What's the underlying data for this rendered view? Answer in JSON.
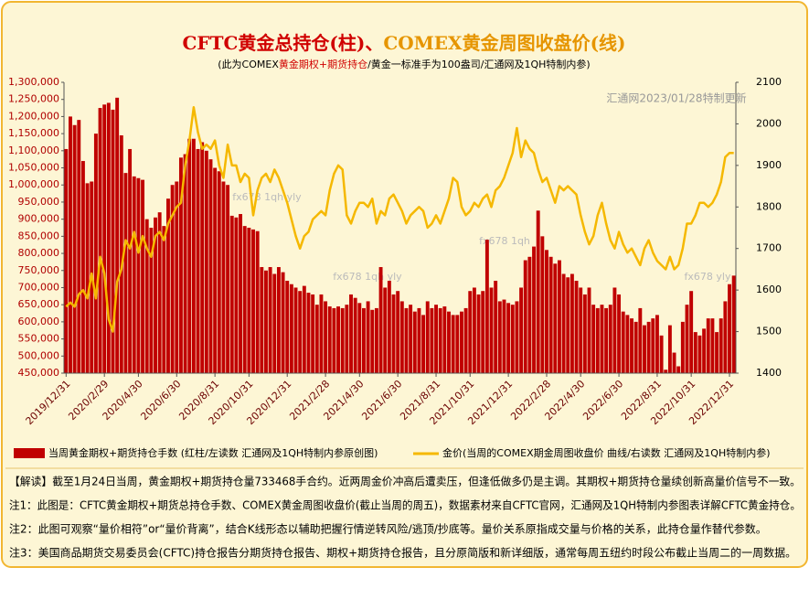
{
  "chart_data": {
    "type": "bar-line",
    "title_parts": [
      "CFTC黄金总持仓(柱)、",
      "COMEX黄金周图收盘价(线)"
    ],
    "subtitle_parts": [
      "(此为COMEX",
      "黄金期权+期货持仓",
      "/黄金一标准手为100盎司/汇通网及1QH特制内参)"
    ],
    "categories": [
      "2019/12/31",
      null,
      null,
      null,
      null,
      null,
      null,
      null,
      null,
      "2020/2/29",
      null,
      null,
      null,
      null,
      null,
      null,
      null,
      "2020/4/30",
      null,
      null,
      null,
      null,
      null,
      null,
      null,
      null,
      "2020/6/30",
      null,
      null,
      null,
      null,
      null,
      null,
      null,
      null,
      "2020/8/31",
      null,
      null,
      null,
      null,
      null,
      null,
      null,
      "2020/10/31",
      null,
      null,
      null,
      null,
      null,
      null,
      null,
      null,
      "2020/12/31",
      null,
      null,
      null,
      null,
      null,
      null,
      null,
      null,
      "2021/2/28",
      null,
      null,
      null,
      null,
      null,
      null,
      null,
      "2021/4/30",
      null,
      null,
      null,
      null,
      null,
      null,
      null,
      null,
      "2021/6/30",
      null,
      null,
      null,
      null,
      null,
      null,
      null,
      null,
      "2021/8/31",
      null,
      null,
      null,
      null,
      null,
      null,
      null,
      "2021/10/31",
      null,
      null,
      null,
      null,
      null,
      null,
      null,
      null,
      "2021/12/31",
      null,
      null,
      null,
      null,
      null,
      null,
      null,
      null,
      "2022/2/28",
      null,
      null,
      null,
      null,
      null,
      null,
      null,
      "2022/4/30",
      null,
      null,
      null,
      null,
      null,
      null,
      null,
      null,
      "2022/6/30",
      null,
      null,
      null,
      null,
      null,
      null,
      null,
      null,
      "2022/8/31",
      null,
      null,
      null,
      null,
      null,
      null,
      null,
      "2022/10/31",
      null,
      null,
      null,
      null,
      null,
      null,
      null,
      null,
      "2022/12/31",
      null
    ],
    "series": [
      {
        "name": "当周黄金期权+期货持仓手数 (红柱/左读数 汇通网及1QH特制内参原创图)",
        "color": "#c00000",
        "kind": "bar",
        "values": [
          1105000,
          1200000,
          1175000,
          1190000,
          1070000,
          1005000,
          1010000,
          1150000,
          1225000,
          1235000,
          1240000,
          1220000,
          1255000,
          1145000,
          1035000,
          1105000,
          1025000,
          1020000,
          1015000,
          900000,
          875000,
          905000,
          920000,
          880000,
          960000,
          1000000,
          1010000,
          1080000,
          1090000,
          1135000,
          1135000,
          1105000,
          1125000,
          1100000,
          1075000,
          1050000,
          1040000,
          1010000,
          1000000,
          910000,
          905000,
          915000,
          880000,
          875000,
          870000,
          865000,
          760000,
          750000,
          760000,
          740000,
          760000,
          745000,
          720000,
          710000,
          700000,
          690000,
          705000,
          685000,
          680000,
          650000,
          680000,
          660000,
          645000,
          640000,
          645000,
          640000,
          650000,
          680000,
          670000,
          655000,
          640000,
          660000,
          635000,
          640000,
          760000,
          700000,
          720000,
          680000,
          690000,
          660000,
          640000,
          650000,
          630000,
          640000,
          620000,
          660000,
          640000,
          650000,
          640000,
          645000,
          630000,
          620000,
          620000,
          630000,
          640000,
          690000,
          700000,
          680000,
          690000,
          840000,
          700000,
          720000,
          660000,
          665000,
          655000,
          650000,
          660000,
          700000,
          780000,
          790000,
          820000,
          925000,
          850000,
          810000,
          790000,
          770000,
          780000,
          740000,
          730000,
          740000,
          720000,
          700000,
          680000,
          700000,
          650000,
          640000,
          650000,
          640000,
          650000,
          700000,
          680000,
          630000,
          620000,
          610000,
          600000,
          640000,
          590000,
          600000,
          610000,
          620000,
          560000,
          460000,
          590000,
          510000,
          470000,
          600000,
          650000,
          690000,
          570000,
          560000,
          580000,
          610000,
          610000,
          570000,
          610000,
          660000,
          710000,
          735000
        ]
      },
      {
        "name": "金价(当周的COMEX期金周图收盘价 曲线/右读数 汇通网及1QH特制内参)",
        "color": "#f5b800",
        "kind": "line",
        "axis": "y2",
        "values": [
          1560,
          1570,
          1560,
          1590,
          1600,
          1580,
          1640,
          1580,
          1680,
          1640,
          1530,
          1500,
          1620,
          1650,
          1720,
          1700,
          1740,
          1690,
          1730,
          1700,
          1680,
          1730,
          1740,
          1720,
          1760,
          1780,
          1800,
          1810,
          1900,
          1960,
          2040,
          1980,
          1940,
          1950,
          1940,
          1960,
          1900,
          1870,
          1950,
          1900,
          1900,
          1860,
          1880,
          1870,
          1780,
          1840,
          1870,
          1880,
          1860,
          1890,
          1870,
          1840,
          1810,
          1770,
          1730,
          1700,
          1730,
          1740,
          1770,
          1780,
          1790,
          1780,
          1840,
          1880,
          1900,
          1890,
          1780,
          1760,
          1790,
          1810,
          1810,
          1800,
          1820,
          1760,
          1790,
          1780,
          1820,
          1830,
          1810,
          1790,
          1760,
          1780,
          1790,
          1800,
          1790,
          1750,
          1760,
          1780,
          1760,
          1790,
          1820,
          1870,
          1860,
          1800,
          1780,
          1790,
          1810,
          1800,
          1820,
          1830,
          1800,
          1840,
          1850,
          1870,
          1900,
          1930,
          1990,
          1920,
          1960,
          1940,
          1930,
          1890,
          1860,
          1870,
          1840,
          1810,
          1850,
          1840,
          1850,
          1840,
          1830,
          1780,
          1740,
          1710,
          1730,
          1780,
          1810,
          1760,
          1720,
          1700,
          1740,
          1710,
          1690,
          1700,
          1680,
          1660,
          1700,
          1720,
          1690,
          1670,
          1660,
          1650,
          1680,
          1650,
          1660,
          1700,
          1760,
          1760,
          1780,
          1810,
          1810,
          1800,
          1810,
          1830,
          1860,
          1920,
          1930,
          1930
        ]
      }
    ],
    "ylim": [
      450000,
      1300000
    ],
    "yticks": [
      {
        "value": 450000,
        "label": "450,000"
      },
      {
        "value": 500000,
        "label": "500,000"
      },
      {
        "value": 550000,
        "label": "550,000"
      },
      {
        "value": 600000,
        "label": "600,000"
      },
      {
        "value": 650000,
        "label": "650,000"
      },
      {
        "value": 700000,
        "label": "700,000"
      },
      {
        "value": 750000,
        "label": "750,000"
      },
      {
        "value": 800000,
        "label": "800,000"
      },
      {
        "value": 850000,
        "label": "850,000"
      },
      {
        "value": 900000,
        "label": "900,000"
      },
      {
        "value": 950000,
        "label": "950,000"
      },
      {
        "value": 1000000,
        "label": "1,000,000"
      },
      {
        "value": 1050000,
        "label": "1,050,000"
      },
      {
        "value": 1100000,
        "label": "1,100,000"
      },
      {
        "value": 1150000,
        "label": "1,150,000"
      },
      {
        "value": 1200000,
        "label": "1,200,000"
      },
      {
        "value": 1250000,
        "label": "1,250,000"
      },
      {
        "value": 1300000,
        "label": "1,300,000"
      }
    ],
    "y2lim": [
      1400,
      2100
    ],
    "y2ticks": [
      1400,
      1500,
      1600,
      1700,
      1800,
      1900,
      2000,
      2100
    ],
    "annotations": [
      "汇通网2023/01/28特制更新",
      "fx678 1qh yly",
      "fx678 1qh yly",
      "fx678 1qh",
      "fx678 yly"
    ],
    "notes": [
      "【解读】截至1月24日当周，黄金期权+期货持仓量733468手合约。近两周金价冲高后遭卖压，但逢低做多仍是主调。其期权+期货持仓量续创新高量价信号不一致。",
      "注1：此图是：CFTC黄金期权+期货总持仓手数、COMEX黄金周图收盘价(截止当周的周五)，数据素材来自CFTC官网，汇通网及1QH特制内参图表详解CFTC黄金持仓。",
      "注2：此图可观察“量价相符”or“量价背离”，结合K线形态以辅助把握行情逆转风险/逃顶/抄底等。量价关系原指成交量与价格的关系，此持仓量作替代参数。",
      "注3：美国商品期货交易委员会(CFTC)持仓报告分期货持仓报告、期权+期货持仓报告，且分原简版和新详细版，通常每周五纽约时段公布截止当周二的一周数据。"
    ]
  }
}
